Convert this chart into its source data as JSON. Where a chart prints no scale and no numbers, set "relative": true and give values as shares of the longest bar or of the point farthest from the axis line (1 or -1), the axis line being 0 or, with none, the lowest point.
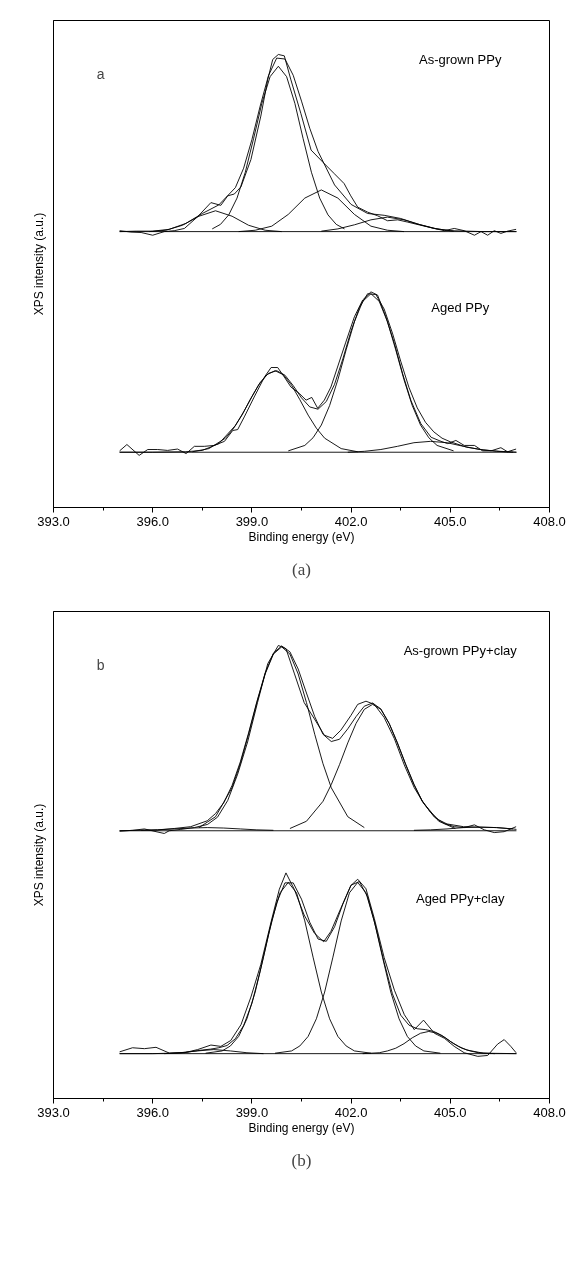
{
  "chart_data": [
    {
      "type": "line",
      "title": "a",
      "xlabel": "Binding energy (eV)",
      "ylabel": "XPS intensity (a.u.)",
      "relative": true,
      "tick_labels": "x",
      "grid": false,
      "xlim": [
        393,
        408
      ],
      "xticks": [
        {
          "value": 393,
          "label": "393.0"
        },
        {
          "value": 394.5,
          "label": null
        },
        {
          "value": 396,
          "label": "396.0"
        },
        {
          "value": 397.5,
          "label": null
        },
        {
          "value": 399,
          "label": "399.0"
        },
        {
          "value": 400.5,
          "label": null
        },
        {
          "value": 402,
          "label": "402.0"
        },
        {
          "value": 403.5,
          "label": null
        },
        {
          "value": 405,
          "label": "405.0"
        },
        {
          "value": 406.5,
          "label": null
        },
        {
          "value": 408,
          "label": "408.0"
        }
      ],
      "annotations": [
        "As-grown PPy",
        "Aged PPy",
        "(a)"
      ],
      "series": [
        {
          "color": "#000000",
          "x": [
            395,
            407
          ],
          "values": [
            0.609,
            0.609
          ]
        },
        {
          "color": "#000000",
          "x": [
            395.0,
            395.34,
            395.65,
            396.0,
            396.35,
            396.65,
            396.96,
            397.36,
            397.76,
            398.06,
            398.27,
            398.47,
            398.67,
            398.97,
            399.27,
            399.48,
            399.63,
            399.8,
            399.98,
            400.18,
            400.48,
            400.79,
            401.19,
            401.49,
            401.79,
            401.99,
            402.2,
            402.5,
            402.8,
            403.1,
            403.41,
            403.71,
            404.11,
            404.52,
            404.82,
            405.12,
            405.42,
            405.73,
            405.93,
            406.13,
            406.33,
            406.53,
            406.73,
            406.99
          ],
          "values": [
            0.611,
            0.608,
            0.607,
            0.601,
            0.609,
            0.611,
            0.616,
            0.642,
            0.673,
            0.667,
            0.688,
            0.692,
            0.708,
            0.768,
            0.864,
            0.945,
            0.989,
            1.0,
            0.997,
            0.944,
            0.87,
            0.789,
            0.759,
            0.737,
            0.715,
            0.688,
            0.663,
            0.652,
            0.644,
            0.633,
            0.635,
            0.63,
            0.623,
            0.616,
            0.611,
            0.616,
            0.611,
            0.601,
            0.609,
            0.601,
            0.611,
            0.605,
            0.61,
            0.614
          ]
        },
        {
          "color": "#000000",
          "x": [
            395,
            395.5,
            396,
            396.5,
            397,
            397.5,
            398,
            398.5,
            398.75,
            399,
            399.25,
            399.5,
            399.75,
            400,
            400.25,
            400.5,
            400.75,
            401,
            401.5,
            402,
            402.5,
            403,
            403.5,
            404,
            404.5,
            405,
            406,
            407
          ],
          "values": [
            0.609,
            0.61,
            0.61,
            0.614,
            0.627,
            0.649,
            0.668,
            0.706,
            0.749,
            0.812,
            0.886,
            0.953,
            0.992,
            0.99,
            0.954,
            0.897,
            0.837,
            0.786,
            0.712,
            0.669,
            0.649,
            0.645,
            0.638,
            0.626,
            0.616,
            0.611,
            0.609,
            0.609
          ]
        },
        {
          "color": "#000000",
          "x": [
            395.9,
            396.4,
            396.9,
            397.4,
            397.9,
            398.4,
            398.9,
            399.4,
            399.9
          ],
          "values": [
            0.609,
            0.612,
            0.623,
            0.643,
            0.655,
            0.643,
            0.623,
            0.612,
            0.609
          ]
        },
        {
          "color": "#000000",
          "x": [
            397.8,
            398.05,
            398.3,
            398.55,
            398.8,
            399.05,
            399.3,
            399.55,
            399.8,
            400.05,
            400.3,
            400.55,
            400.8,
            401.05,
            401.3,
            401.55,
            401.8
          ],
          "values": [
            0.615,
            0.625,
            0.646,
            0.683,
            0.74,
            0.814,
            0.892,
            0.951,
            0.974,
            0.951,
            0.892,
            0.814,
            0.74,
            0.683,
            0.646,
            0.625,
            0.615
          ]
        },
        {
          "color": "#000000",
          "x": [
            398.6,
            399.1,
            399.6,
            400.1,
            400.6,
            401.1,
            401.6,
            402.1,
            402.6,
            403.1,
            403.6
          ],
          "values": [
            0.609,
            0.612,
            0.621,
            0.647,
            0.683,
            0.701,
            0.683,
            0.647,
            0.621,
            0.612,
            0.609
          ]
        },
        {
          "color": "#000000",
          "x": [
            401.1,
            401.6,
            402.1,
            402.6,
            403.1,
            403.6,
            404.1,
            404.6,
            405.1
          ],
          "values": [
            0.61,
            0.615,
            0.624,
            0.635,
            0.641,
            0.635,
            0.624,
            0.615,
            0.61
          ]
        },
        {
          "color": "#000000",
          "x": [
            395,
            407
          ],
          "values": [
            0.122,
            0.122
          ]
        },
        {
          "color": "#000000",
          "x": [
            395.0,
            395.22,
            395.59,
            395.85,
            396.15,
            396.45,
            396.75,
            397.01,
            397.26,
            397.56,
            397.86,
            398.17,
            398.42,
            398.57,
            398.77,
            399.07,
            399.38,
            399.58,
            399.78,
            399.98,
            400.18,
            400.43,
            400.64,
            400.81,
            400.99,
            401.19,
            401.39,
            401.59,
            401.84,
            402.1,
            402.35,
            402.6,
            402.8,
            403.05,
            403.31,
            403.56,
            403.81,
            404.11,
            404.42,
            404.72,
            404.92,
            405.17,
            405.42,
            405.73,
            405.98,
            406.23,
            406.53,
            406.73,
            406.99
          ],
          "values": [
            0.125,
            0.139,
            0.115,
            0.128,
            0.128,
            0.126,
            0.129,
            0.119,
            0.135,
            0.135,
            0.137,
            0.146,
            0.17,
            0.172,
            0.2,
            0.244,
            0.288,
            0.309,
            0.309,
            0.288,
            0.266,
            0.252,
            0.237,
            0.243,
            0.219,
            0.237,
            0.266,
            0.31,
            0.365,
            0.421,
            0.458,
            0.476,
            0.469,
            0.421,
            0.362,
            0.295,
            0.236,
            0.185,
            0.155,
            0.146,
            0.141,
            0.148,
            0.137,
            0.137,
            0.125,
            0.125,
            0.132,
            0.123,
            0.129
          ]
        },
        {
          "color": "#000000",
          "x": [
            395,
            396,
            397,
            397.5,
            398,
            398.5,
            398.75,
            399,
            399.25,
            399.5,
            399.75,
            400,
            400.25,
            400.5,
            400.75,
            401,
            401.25,
            401.5,
            401.75,
            402,
            402.25,
            402.5,
            402.75,
            403,
            403.25,
            403.5,
            403.75,
            404,
            404.25,
            404.5,
            404.75,
            405,
            405.5,
            406,
            406.5,
            407
          ],
          "values": [
            0.122,
            0.122,
            0.123,
            0.126,
            0.141,
            0.181,
            0.211,
            0.245,
            0.276,
            0.296,
            0.302,
            0.292,
            0.269,
            0.242,
            0.222,
            0.217,
            0.234,
            0.272,
            0.328,
            0.39,
            0.441,
            0.472,
            0.47,
            0.438,
            0.385,
            0.323,
            0.265,
            0.22,
            0.188,
            0.167,
            0.153,
            0.145,
            0.133,
            0.127,
            0.124,
            0.122
          ]
        },
        {
          "color": "#000000",
          "x": [
            397.2,
            397.7,
            398.2,
            398.45,
            398.7,
            398.95,
            399.2,
            399.45,
            399.7,
            399.95,
            400.2,
            400.45,
            400.7,
            400.95,
            401.2,
            401.7,
            402.2
          ],
          "values": [
            0.123,
            0.13,
            0.153,
            0.175,
            0.204,
            0.238,
            0.27,
            0.293,
            0.302,
            0.293,
            0.27,
            0.238,
            0.204,
            0.175,
            0.153,
            0.13,
            0.123
          ]
        },
        {
          "color": "#000000",
          "x": [
            400.1,
            400.6,
            400.85,
            401.1,
            401.35,
            401.6,
            401.85,
            402.1,
            402.35,
            402.6,
            402.85,
            403.1,
            403.35,
            403.6,
            403.85,
            404.1,
            404.35,
            404.6,
            405.1
          ],
          "values": [
            0.125,
            0.137,
            0.154,
            0.182,
            0.225,
            0.282,
            0.348,
            0.41,
            0.455,
            0.472,
            0.455,
            0.41,
            0.348,
            0.282,
            0.225,
            0.182,
            0.154,
            0.137,
            0.125
          ]
        },
        {
          "color": "#000000",
          "x": [
            401.9,
            402.4,
            402.9,
            403.4,
            403.9,
            404.4,
            404.9,
            405.4,
            405.9,
            406.4,
            406.9
          ],
          "values": [
            0.122,
            0.124,
            0.128,
            0.135,
            0.143,
            0.146,
            0.143,
            0.135,
            0.128,
            0.124,
            0.122
          ]
        }
      ]
    },
    {
      "type": "line",
      "title": "b",
      "xlabel": "Binding energy (eV)",
      "ylabel": "XPS intensity (a.u.)",
      "relative": true,
      "tick_labels": "x",
      "grid": false,
      "xlim": [
        393,
        408
      ],
      "xticks": [
        {
          "value": 393,
          "label": "393.0"
        },
        {
          "value": 394.5,
          "label": null
        },
        {
          "value": 396,
          "label": "396.0"
        },
        {
          "value": 397.5,
          "label": null
        },
        {
          "value": 399,
          "label": "399.0"
        },
        {
          "value": 400.5,
          "label": null
        },
        {
          "value": 402,
          "label": "402.0"
        },
        {
          "value": 403.5,
          "label": null
        },
        {
          "value": 405,
          "label": "405.0"
        },
        {
          "value": 406.5,
          "label": null
        },
        {
          "value": 408,
          "label": "408.0"
        }
      ],
      "annotations": [
        "As-grown PPy+clay",
        "Aged PPy+clay",
        "(b)"
      ],
      "series": [
        {
          "color": "#000000",
          "x": [
            395,
            407
          ],
          "values": [
            0.591,
            0.591
          ]
        },
        {
          "color": "#000000",
          "x": [
            395.0,
            395.39,
            395.75,
            396.1,
            396.35,
            396.5,
            396.85,
            397.26,
            397.66,
            397.96,
            398.27,
            398.57,
            398.87,
            399.17,
            399.48,
            399.8,
            400.03,
            400.28,
            400.58,
            400.89,
            401.19,
            401.44,
            401.69,
            401.99,
            402.2,
            402.45,
            402.7,
            403.0,
            403.31,
            403.61,
            403.91,
            404.21,
            404.52,
            404.82,
            405.12,
            405.42,
            405.73,
            406.03,
            406.33,
            406.63,
            406.99
          ],
          "values": [
            0.59,
            0.592,
            0.595,
            0.589,
            0.585,
            0.591,
            0.594,
            0.598,
            0.605,
            0.621,
            0.658,
            0.716,
            0.787,
            0.874,
            0.96,
            1.0,
            0.993,
            0.939,
            0.874,
            0.838,
            0.802,
            0.795,
            0.813,
            0.845,
            0.87,
            0.877,
            0.87,
            0.841,
            0.794,
            0.736,
            0.686,
            0.65,
            0.621,
            0.607,
            0.6,
            0.598,
            0.604,
            0.593,
            0.587,
            0.589,
            0.6
          ]
        },
        {
          "color": "#000000",
          "x": [
            395.0,
            396.15,
            396.65,
            397.15,
            397.65,
            397.9,
            398.15,
            398.4,
            398.65,
            398.9,
            399.15,
            399.4,
            399.65,
            399.9,
            400.15,
            400.4,
            400.65,
            400.9,
            401.15,
            401.4,
            401.65,
            401.9,
            402.15,
            402.4,
            402.65,
            402.9,
            403.15,
            403.4,
            403.65,
            403.9,
            404.15,
            404.4,
            404.65,
            404.9,
            405.4,
            405.9,
            406.4,
            406.9,
            407.0
          ],
          "values": [
            0.591,
            0.593,
            0.596,
            0.6,
            0.613,
            0.629,
            0.653,
            0.691,
            0.743,
            0.807,
            0.876,
            0.939,
            0.983,
            0.999,
            0.986,
            0.948,
            0.895,
            0.843,
            0.804,
            0.788,
            0.793,
            0.816,
            0.843,
            0.866,
            0.873,
            0.86,
            0.828,
            0.785,
            0.738,
            0.694,
            0.657,
            0.632,
            0.615,
            0.606,
            0.6,
            0.599,
            0.598,
            0.595,
            0.594
          ]
        },
        {
          "color": "#000000",
          "x": [
            397.4,
            397.9,
            398.4,
            398.65,
            398.9,
            399.15,
            399.4,
            399.65,
            399.9,
            400.15,
            400.4,
            400.65,
            400.9,
            401.15,
            401.4,
            401.9,
            402.4
          ],
          "values": [
            0.598,
            0.622,
            0.686,
            0.739,
            0.804,
            0.874,
            0.937,
            0.981,
            0.997,
            0.981,
            0.937,
            0.874,
            0.804,
            0.739,
            0.686,
            0.622,
            0.598
          ]
        },
        {
          "color": "#000000",
          "x": [
            400.15,
            400.65,
            401.15,
            401.4,
            401.65,
            401.9,
            402.15,
            402.4,
            402.65,
            402.9,
            403.15,
            403.4,
            403.65,
            403.9,
            404.15,
            404.65,
            405.15
          ],
          "values": [
            0.596,
            0.612,
            0.656,
            0.693,
            0.737,
            0.785,
            0.828,
            0.859,
            0.87,
            0.859,
            0.828,
            0.785,
            0.737,
            0.693,
            0.656,
            0.612,
            0.596
          ]
        },
        {
          "color": "#000000",
          "x": [
            395.65,
            396.15,
            396.65,
            397.15,
            397.65,
            398.15,
            398.65,
            399.15,
            399.65
          ],
          "values": [
            0.592,
            0.593,
            0.595,
            0.597,
            0.598,
            0.597,
            0.595,
            0.593,
            0.592
          ]
        },
        {
          "color": "#000000",
          "x": [
            403.9,
            404.4,
            404.9,
            405.4,
            405.9,
            406.4,
            406.9
          ],
          "values": [
            0.592,
            0.593,
            0.595,
            0.598,
            0.599,
            0.598,
            0.595
          ]
        },
        {
          "color": "#000000",
          "x": [
            395,
            407
          ],
          "values": [
            0.099,
            0.099
          ]
        },
        {
          "color": "#000000",
          "x": [
            395.0,
            395.39,
            395.75,
            396.1,
            396.51,
            396.96,
            397.36,
            397.76,
            398.06,
            398.36,
            398.67,
            398.97,
            399.27,
            399.58,
            399.83,
            400.03,
            400.28,
            400.58,
            400.89,
            401.17,
            401.39,
            401.69,
            401.99,
            402.2,
            402.45,
            402.7,
            403.0,
            403.31,
            403.61,
            403.91,
            404.19,
            404.52,
            404.82,
            405.12,
            405.42,
            405.83,
            406.13,
            406.43,
            406.63,
            406.83,
            406.99
          ],
          "values": [
            0.103,
            0.112,
            0.11,
            0.113,
            0.1,
            0.101,
            0.108,
            0.118,
            0.115,
            0.128,
            0.163,
            0.224,
            0.296,
            0.39,
            0.462,
            0.498,
            0.462,
            0.405,
            0.365,
            0.346,
            0.369,
            0.42,
            0.47,
            0.484,
            0.463,
            0.398,
            0.311,
            0.239,
            0.185,
            0.152,
            0.173,
            0.144,
            0.133,
            0.115,
            0.101,
            0.093,
            0.095,
            0.12,
            0.13,
            0.115,
            0.101
          ]
        },
        {
          "color": "#000000",
          "x": [
            395,
            396,
            396.5,
            397,
            397.5,
            397.75,
            398,
            398.25,
            398.5,
            398.75,
            399,
            399.25,
            399.5,
            399.75,
            400,
            400.25,
            400.5,
            400.75,
            401,
            401.25,
            401.5,
            401.75,
            402,
            402.25,
            402.5,
            402.75,
            403,
            403.25,
            403.5,
            403.75,
            404,
            404.25,
            404.5,
            404.75,
            405,
            405.25,
            405.5,
            406,
            407
          ],
          "values": [
            0.099,
            0.099,
            0.1,
            0.102,
            0.107,
            0.109,
            0.112,
            0.117,
            0.132,
            0.161,
            0.21,
            0.281,
            0.361,
            0.432,
            0.476,
            0.476,
            0.44,
            0.389,
            0.352,
            0.347,
            0.379,
            0.429,
            0.471,
            0.479,
            0.445,
            0.377,
            0.3,
            0.231,
            0.184,
            0.162,
            0.154,
            0.152,
            0.148,
            0.139,
            0.126,
            0.115,
            0.107,
            0.1,
            0.099
          ]
        },
        {
          "color": "#000000",
          "x": [
            397.6,
            398.1,
            398.35,
            398.6,
            398.85,
            399.1,
            399.35,
            399.6,
            399.85,
            400.1,
            400.35,
            400.6,
            400.85,
            401.1,
            401.35,
            401.6,
            401.85,
            402.1,
            402.6
          ],
          "values": [
            0.1,
            0.105,
            0.116,
            0.137,
            0.176,
            0.235,
            0.312,
            0.392,
            0.454,
            0.477,
            0.454,
            0.392,
            0.312,
            0.235,
            0.176,
            0.137,
            0.116,
            0.105,
            0.1
          ]
        },
        {
          "color": "#000000",
          "x": [
            399.7,
            400.2,
            400.45,
            400.7,
            400.95,
            401.2,
            401.45,
            401.7,
            401.95,
            402.2,
            402.45,
            402.7,
            402.95,
            403.2,
            403.45,
            403.7,
            403.95,
            404.2,
            404.7
          ],
          "values": [
            0.1,
            0.105,
            0.116,
            0.137,
            0.176,
            0.235,
            0.312,
            0.392,
            0.454,
            0.477,
            0.454,
            0.392,
            0.312,
            0.235,
            0.176,
            0.137,
            0.116,
            0.105,
            0.1
          ]
        },
        {
          "color": "#000000",
          "x": [
            402.35,
            402.85,
            403.1,
            403.35,
            403.6,
            403.85,
            404.1,
            404.35,
            404.6,
            404.85,
            405.1,
            405.35,
            405.6,
            405.85,
            406.35
          ],
          "values": [
            0.099,
            0.101,
            0.105,
            0.111,
            0.121,
            0.134,
            0.144,
            0.148,
            0.144,
            0.134,
            0.121,
            0.111,
            0.105,
            0.101,
            0.099
          ]
        },
        {
          "color": "#000000",
          "x": [
            396.35,
            396.85,
            397.35,
            397.85,
            398.35,
            398.85,
            399.35
          ],
          "values": [
            0.099,
            0.101,
            0.105,
            0.108,
            0.105,
            0.101,
            0.099
          ]
        }
      ]
    }
  ]
}
